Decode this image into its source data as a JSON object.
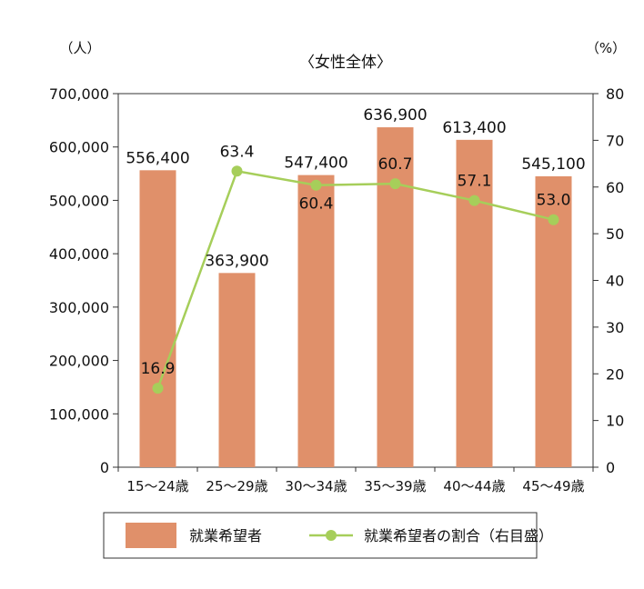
{
  "chart_data": {
    "type": "bar+line",
    "title": "〈女性全体〉",
    "left_unit": "（人）",
    "right_unit": "（%）",
    "categories": [
      "15～24歳",
      "25～29歳",
      "30～34歳",
      "35～39歳",
      "40～44歳",
      "45～49歳"
    ],
    "bar_series": {
      "name": "就業希望者",
      "values": [
        556400,
        363900,
        547400,
        636900,
        613400,
        545100
      ],
      "labels": [
        "556,400",
        "363,900",
        "547,400",
        "636,900",
        "613,400",
        "545,100"
      ],
      "color": "#E0906A"
    },
    "line_series": {
      "name": "就業希望者の割合（右目盛）",
      "values": [
        16.9,
        63.4,
        60.4,
        60.7,
        57.1,
        53.0
      ],
      "labels": [
        "16.9",
        "63.4",
        "60.4",
        "60.7",
        "57.1",
        "53.0"
      ],
      "color": "#A6CE5A"
    },
    "y_left": {
      "range": [
        0,
        700000
      ],
      "ticks": [
        0,
        100000,
        200000,
        300000,
        400000,
        500000,
        600000,
        700000
      ],
      "tick_labels": [
        "0",
        "100,000",
        "200,000",
        "300,000",
        "400,000",
        "500,000",
        "600,000",
        "700,000"
      ]
    },
    "y_right": {
      "range": [
        0,
        80
      ],
      "ticks": [
        0,
        10,
        20,
        30,
        40,
        50,
        60,
        70,
        80
      ],
      "tick_labels": [
        "0",
        "10",
        "20",
        "30",
        "40",
        "50",
        "60",
        "70",
        "80"
      ]
    },
    "legend_position": "bottom",
    "grid": false
  }
}
